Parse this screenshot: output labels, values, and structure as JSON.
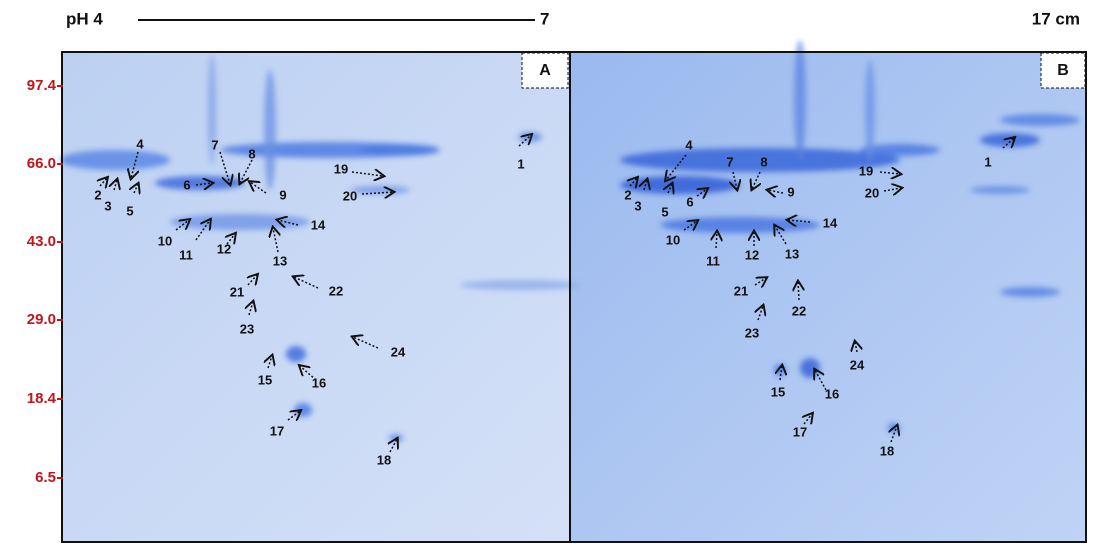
{
  "header": {
    "ph_start": "pH 4",
    "ph_end": "7",
    "length": "17 cm"
  },
  "mw_markers": [
    "97.4",
    "66.0",
    "43.0",
    "29.0",
    "18.4",
    "6.5"
  ],
  "panels": [
    {
      "label": "A",
      "spots": [
        "1",
        "2",
        "3",
        "4",
        "5",
        "6",
        "7",
        "8",
        "9",
        "10",
        "11",
        "12",
        "13",
        "14",
        "15",
        "16",
        "17",
        "18",
        "19",
        "20",
        "21",
        "22",
        "23",
        "24"
      ]
    },
    {
      "label": "B",
      "spots": [
        "1",
        "2",
        "3",
        "4",
        "5",
        "6",
        "7",
        "8",
        "9",
        "10",
        "11",
        "12",
        "13",
        "14",
        "15",
        "16",
        "17",
        "18",
        "19",
        "20",
        "21",
        "22",
        "23",
        "24"
      ]
    }
  ]
}
